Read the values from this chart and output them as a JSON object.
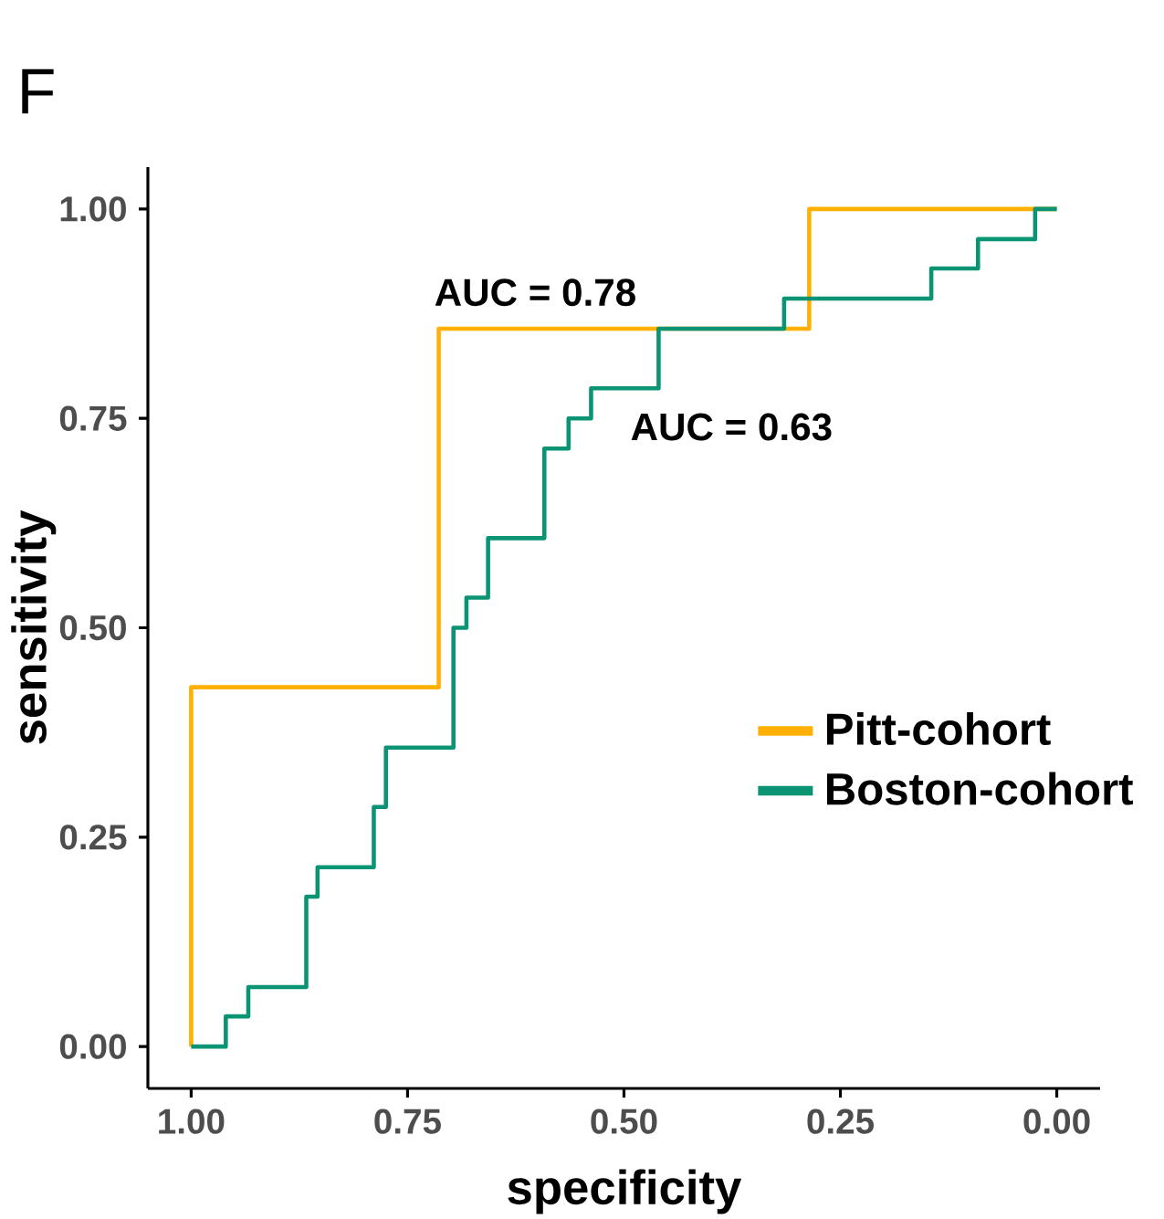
{
  "chart_data": {
    "type": "step",
    "title": "F",
    "xlabel": "specificity",
    "ylabel": "sensitivity",
    "xlim": [
      1.05,
      -0.05
    ],
    "ylim": [
      -0.05,
      1.05
    ],
    "xticks": [
      {
        "value": 1.0,
        "label": "1.00"
      },
      {
        "value": 0.75,
        "label": "0.75"
      },
      {
        "value": 0.5,
        "label": "0.50"
      },
      {
        "value": 0.25,
        "label": "0.25"
      },
      {
        "value": 0.0,
        "label": "0.00"
      }
    ],
    "yticks": [
      {
        "value": 0.0,
        "label": "0.00"
      },
      {
        "value": 0.25,
        "label": "0.25"
      },
      {
        "value": 0.5,
        "label": "0.50"
      },
      {
        "value": 0.75,
        "label": "0.75"
      },
      {
        "value": 1.0,
        "label": "1.00"
      }
    ],
    "grid": false,
    "legend": "right",
    "series": [
      {
        "name": "Pitt-cohort",
        "color": "#ffb000",
        "x": [
          1.0,
          1.0,
          0.714,
          0.286,
          0.0
        ],
        "values": [
          0.0,
          0.429,
          0.857,
          1.0,
          1.0
        ]
      },
      {
        "name": "Boston-cohort",
        "color": "#0b9474",
        "x": [
          1.0,
          0.96,
          0.934,
          0.867,
          0.854,
          0.789,
          0.775,
          0.697,
          0.682,
          0.657,
          0.592,
          0.564,
          0.538,
          0.46,
          0.315,
          0.145,
          0.091,
          0.025,
          0.0
        ],
        "values": [
          0.0,
          0.036,
          0.071,
          0.179,
          0.214,
          0.286,
          0.357,
          0.5,
          0.536,
          0.607,
          0.714,
          0.75,
          0.786,
          0.857,
          0.893,
          0.929,
          0.964,
          1.0,
          1.0
        ]
      }
    ],
    "annotations": [
      "AUC = 0.78",
      "AUC = 0.63"
    ]
  }
}
